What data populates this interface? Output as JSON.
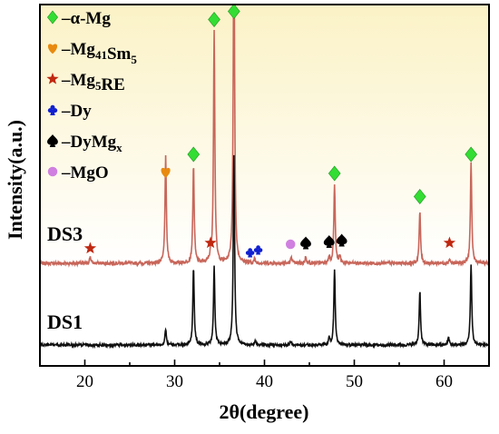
{
  "chart_data": {
    "type": "line",
    "title": "",
    "xlabel": "2θ(degree)",
    "ylabel": "Intensity(a.u.)",
    "xlim": [
      15,
      65
    ],
    "x_ticks": [
      20,
      30,
      40,
      50,
      60
    ],
    "y_ticks_shown": false,
    "grid": false,
    "background_gradient": [
      "#fbf2c6",
      "#ffffff"
    ],
    "legend": {
      "placement": "top-left",
      "entries": [
        {
          "id": "alpha_mg",
          "label": "–α-Mg",
          "marker": "diamond",
          "color": "#33dd33"
        },
        {
          "id": "mg41sm5",
          "label_main": "–Mg",
          "label_sub1": "41",
          "label_mid": "Sm",
          "label_sub2": "5",
          "marker": "heart",
          "color": "#e88a10"
        },
        {
          "id": "mg5re",
          "label_main": "–Mg",
          "label_sub1": "5",
          "label_mid": "RE",
          "label_sub2": "",
          "marker": "star",
          "color": "#c02810"
        },
        {
          "id": "dy",
          "label": "–Dy",
          "marker": "club",
          "color": "#1020d0"
        },
        {
          "id": "dymgx",
          "label_main": "–DyMg",
          "label_sub1": "x",
          "marker": "spade",
          "color": "#000000"
        },
        {
          "id": "mgo",
          "label": "–MgO",
          "marker": "circle",
          "color": "#d080e0"
        }
      ]
    },
    "series": [
      {
        "name": "DS3",
        "color": "#c8665a",
        "baseline": 0.6,
        "noise": 0.012,
        "peaks": [
          {
            "x": 20.6,
            "h": 0.05
          },
          {
            "x": 29.0,
            "h": 0.78
          },
          {
            "x": 32.1,
            "h": 0.72
          },
          {
            "x": 34.0,
            "h": 0.05
          },
          {
            "x": 34.4,
            "h": 1.7
          },
          {
            "x": 36.6,
            "h": 2.5
          },
          {
            "x": 38.9,
            "h": 0.03
          },
          {
            "x": 43.0,
            "h": 0.05
          },
          {
            "x": 44.6,
            "h": 0.05
          },
          {
            "x": 47.2,
            "h": 0.05
          },
          {
            "x": 47.8,
            "h": 0.58
          },
          {
            "x": 48.4,
            "h": 0.05
          },
          {
            "x": 57.3,
            "h": 0.38
          },
          {
            "x": 60.6,
            "h": 0.03
          },
          {
            "x": 63.0,
            "h": 0.73
          }
        ]
      },
      {
        "name": "DS1",
        "color": "#111111",
        "baseline": 0.0,
        "noise": 0.01,
        "peaks": [
          {
            "x": 29.0,
            "h": 0.12
          },
          {
            "x": 32.1,
            "h": 0.57
          },
          {
            "x": 34.4,
            "h": 0.57
          },
          {
            "x": 36.6,
            "h": 1.4
          },
          {
            "x": 39.0,
            "h": 0.03
          },
          {
            "x": 42.9,
            "h": 0.03
          },
          {
            "x": 47.2,
            "h": 0.05
          },
          {
            "x": 47.8,
            "h": 0.56
          },
          {
            "x": 57.3,
            "h": 0.4
          },
          {
            "x": 60.5,
            "h": 0.06
          },
          {
            "x": 63.0,
            "h": 0.6
          }
        ]
      }
    ],
    "series_labels": [
      "DS3",
      "DS1"
    ],
    "annotations": [
      {
        "marker": "diamond",
        "color": "#33dd33",
        "x": 32.1,
        "y": 1.4
      },
      {
        "marker": "diamond",
        "color": "#33dd33",
        "x": 34.4,
        "y": 2.39
      },
      {
        "marker": "diamond",
        "color": "#33dd33",
        "x": 36.6,
        "y": 2.45
      },
      {
        "marker": "diamond",
        "color": "#33dd33",
        "x": 47.8,
        "y": 1.26
      },
      {
        "marker": "diamond",
        "color": "#33dd33",
        "x": 57.3,
        "y": 1.09
      },
      {
        "marker": "diamond",
        "color": "#33dd33",
        "x": 63.0,
        "y": 1.4
      },
      {
        "marker": "heart",
        "color": "#e88a10",
        "x": 29.0,
        "y": 1.27
      },
      {
        "marker": "star",
        "color": "#c02810",
        "x": 20.6,
        "y": 0.71
      },
      {
        "marker": "star",
        "color": "#c02810",
        "x": 34.0,
        "y": 0.75
      },
      {
        "marker": "star",
        "color": "#c02810",
        "x": 60.6,
        "y": 0.75
      },
      {
        "marker": "club",
        "color": "#1020d0",
        "x": 38.4,
        "y": 0.68
      },
      {
        "marker": "club",
        "color": "#1020d0",
        "x": 39.3,
        "y": 0.7
      },
      {
        "marker": "circle",
        "color": "#d080e0",
        "x": 42.9,
        "y": 0.74
      },
      {
        "marker": "spade",
        "color": "#000000",
        "x": 44.6,
        "y": 0.75
      },
      {
        "marker": "spade",
        "color": "#000000",
        "x": 47.2,
        "y": 0.76
      },
      {
        "marker": "spade",
        "color": "#000000",
        "x": 48.6,
        "y": 0.77
      }
    ]
  }
}
